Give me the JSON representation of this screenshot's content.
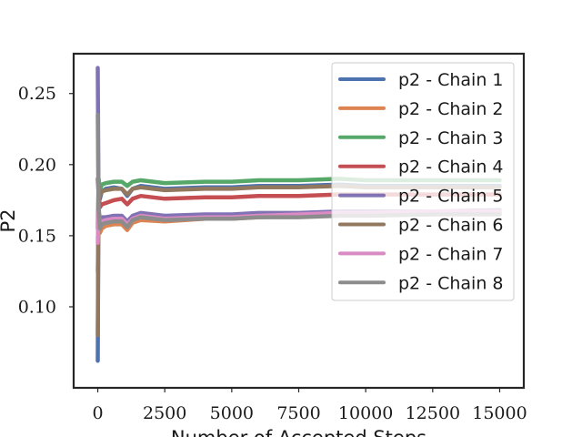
{
  "chart_data": {
    "type": "line",
    "title": "",
    "xlabel": "Number of Accepted Steps",
    "ylabel": "P2",
    "xlim": [
      -900,
      15900
    ],
    "ylim": [
      0.043,
      0.278
    ],
    "x_ticks": [
      0,
      2500,
      5000,
      7500,
      10000,
      12500,
      15000
    ],
    "x_tick_labels": [
      "0",
      "2500",
      "5000",
      "7500",
      "10000",
      "12500",
      "15000"
    ],
    "y_ticks": [
      0.1,
      0.15,
      0.2,
      0.25
    ],
    "y_tick_labels": [
      "0.10",
      "0.15",
      "0.20",
      "0.25"
    ],
    "grid": false,
    "legend_position": "top-right",
    "colors": [
      "#4c72b0",
      "#dd8452",
      "#55a868",
      "#c44e52",
      "#8172b3",
      "#937860",
      "#da8bc3",
      "#8c8c8c"
    ],
    "series": [
      {
        "name": "p2 - Chain 1",
        "x": [
          0,
          30,
          80,
          150,
          300,
          600,
          900,
          1100,
          1300,
          1600,
          2500,
          4000,
          5000,
          6000,
          7500,
          9000,
          10000,
          12500,
          15000
        ],
        "y": [
          0.062,
          0.19,
          0.176,
          0.181,
          0.183,
          0.184,
          0.183,
          0.178,
          0.183,
          0.185,
          0.183,
          0.184,
          0.184,
          0.185,
          0.185,
          0.186,
          0.185,
          0.185,
          0.185
        ]
      },
      {
        "name": "p2 - Chain 2",
        "x": [
          0,
          30,
          80,
          150,
          300,
          600,
          900,
          1100,
          1300,
          1600,
          2500,
          4000,
          5000,
          6000,
          7500,
          9000,
          10000,
          12500,
          15000
        ],
        "y": [
          0.125,
          0.16,
          0.152,
          0.155,
          0.157,
          0.158,
          0.158,
          0.154,
          0.159,
          0.161,
          0.16,
          0.162,
          0.162,
          0.163,
          0.164,
          0.165,
          0.165,
          0.166,
          0.166
        ]
      },
      {
        "name": "p2 - Chain 3",
        "x": [
          0,
          30,
          80,
          150,
          300,
          600,
          900,
          1100,
          1300,
          1600,
          2500,
          4000,
          5000,
          6000,
          7500,
          9000,
          10000,
          12500,
          15000
        ],
        "y": [
          0.155,
          0.19,
          0.182,
          0.186,
          0.187,
          0.188,
          0.188,
          0.185,
          0.188,
          0.189,
          0.187,
          0.188,
          0.188,
          0.189,
          0.189,
          0.19,
          0.189,
          0.189,
          0.189
        ]
      },
      {
        "name": "p2 - Chain 4",
        "x": [
          0,
          30,
          80,
          150,
          300,
          600,
          900,
          1100,
          1300,
          1600,
          2500,
          4000,
          5000,
          6000,
          7500,
          9000,
          10000,
          12500,
          15000
        ],
        "y": [
          0.19,
          0.18,
          0.17,
          0.172,
          0.173,
          0.175,
          0.176,
          0.172,
          0.176,
          0.178,
          0.176,
          0.177,
          0.177,
          0.178,
          0.178,
          0.179,
          0.179,
          0.179,
          0.179
        ]
      },
      {
        "name": "p2 - Chain 5",
        "x": [
          0,
          30,
          80,
          150,
          300,
          600,
          900,
          1100,
          1300,
          1600,
          2500,
          4000,
          5000,
          6000,
          7500,
          9000,
          10000,
          12500,
          15000
        ],
        "y": [
          0.268,
          0.17,
          0.16,
          0.163,
          0.163,
          0.164,
          0.164,
          0.16,
          0.164,
          0.166,
          0.164,
          0.165,
          0.165,
          0.166,
          0.166,
          0.167,
          0.167,
          0.167,
          0.168
        ]
      },
      {
        "name": "p2 - Chain 6",
        "x": [
          0,
          30,
          80,
          150,
          300,
          600,
          900,
          1100,
          1300,
          1600,
          2500,
          4000,
          5000,
          6000,
          7500,
          9000,
          10000,
          12500,
          15000
        ],
        "y": [
          0.08,
          0.185,
          0.178,
          0.181,
          0.182,
          0.183,
          0.183,
          0.179,
          0.183,
          0.184,
          0.182,
          0.183,
          0.183,
          0.184,
          0.184,
          0.185,
          0.184,
          0.184,
          0.184
        ]
      },
      {
        "name": "p2 - Chain 7",
        "x": [
          0,
          30,
          80,
          150,
          300,
          600,
          900,
          1100,
          1300,
          1600,
          2500,
          4000,
          5000,
          6000,
          7500,
          9000,
          10000,
          12500,
          15000
        ],
        "y": [
          0.145,
          0.168,
          0.158,
          0.16,
          0.161,
          0.162,
          0.162,
          0.158,
          0.162,
          0.164,
          0.162,
          0.163,
          0.163,
          0.164,
          0.165,
          0.166,
          0.166,
          0.167,
          0.167
        ]
      },
      {
        "name": "p2 - Chain 8",
        "x": [
          0,
          30,
          80,
          150,
          300,
          600,
          900,
          1100,
          1300,
          1600,
          2500,
          4000,
          5000,
          6000,
          7500,
          9000,
          10000,
          12500,
          15000
        ],
        "y": [
          0.235,
          0.17,
          0.155,
          0.158,
          0.159,
          0.16,
          0.16,
          0.156,
          0.161,
          0.163,
          0.161,
          0.162,
          0.162,
          0.163,
          0.163,
          0.164,
          0.164,
          0.165,
          0.165
        ]
      }
    ]
  }
}
